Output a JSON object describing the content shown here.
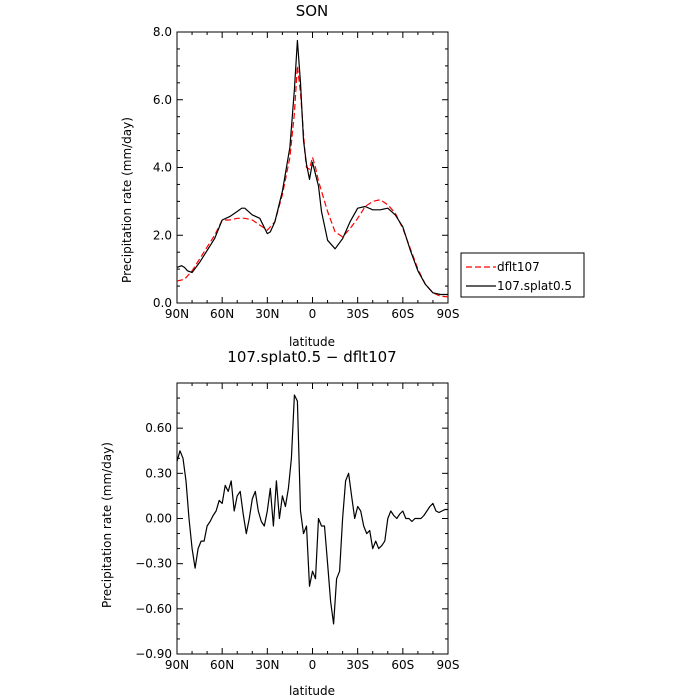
{
  "chart_data": [
    {
      "type": "line",
      "title": "SON",
      "xlabel": "latitude",
      "ylabel": "Precipitation rate (mm/day)",
      "x_ticks": [
        "90N",
        "60N",
        "30N",
        "0",
        "30S",
        "60S",
        "90S"
      ],
      "y_ticks": [
        "0.0",
        "2.0",
        "4.0",
        "6.0",
        "8.0"
      ],
      "ylim": [
        0,
        8
      ],
      "xlim": [
        90,
        -90
      ],
      "grid": false,
      "legend_position": "right",
      "legend": [
        "dflt107",
        "107.splat0.5"
      ],
      "series": [
        {
          "name": "dflt107",
          "color": "#ff0000",
          "dash": "dashed",
          "x": [
            90,
            85,
            80,
            75,
            70,
            65,
            60,
            55,
            50,
            45,
            40,
            35,
            30,
            25,
            20,
            15,
            12,
            10,
            8,
            6,
            5,
            4,
            2,
            0,
            -2,
            -4,
            -6,
            -10,
            -15,
            -20,
            -25,
            -30,
            -35,
            -40,
            -45,
            -50,
            -55,
            -60,
            -65,
            -70,
            -75,
            -80,
            -85,
            -90
          ],
          "values": [
            0.65,
            0.7,
            0.95,
            1.3,
            1.65,
            2.0,
            2.45,
            2.45,
            2.5,
            2.5,
            2.45,
            2.3,
            2.15,
            2.4,
            3.2,
            4.3,
            5.6,
            7.0,
            6.2,
            5.0,
            4.4,
            4.0,
            3.95,
            4.3,
            4.0,
            3.6,
            3.3,
            2.7,
            2.1,
            1.95,
            2.2,
            2.5,
            2.85,
            3.0,
            3.05,
            2.9,
            2.65,
            2.2,
            1.6,
            1.0,
            0.55,
            0.3,
            0.2,
            0.18
          ]
        },
        {
          "name": "107.splat0.5",
          "color": "#000000",
          "dash": "solid",
          "x": [
            90,
            87,
            85,
            83,
            80,
            75,
            70,
            65,
            60,
            55,
            50,
            47,
            45,
            40,
            35,
            30,
            28,
            25,
            20,
            15,
            12,
            10,
            8,
            6,
            4,
            2,
            0,
            -2,
            -4,
            -6,
            -10,
            -15,
            -20,
            -25,
            -30,
            -35,
            -40,
            -45,
            -50,
            -55,
            -60,
            -65,
            -70,
            -75,
            -80,
            -85,
            -90
          ],
          "values": [
            1.05,
            1.1,
            1.05,
            0.95,
            0.9,
            1.2,
            1.55,
            1.9,
            2.45,
            2.55,
            2.7,
            2.8,
            2.8,
            2.6,
            2.5,
            2.05,
            2.1,
            2.4,
            3.3,
            4.6,
            6.3,
            7.75,
            6.5,
            4.8,
            4.1,
            3.65,
            4.15,
            3.8,
            3.45,
            2.7,
            1.85,
            1.6,
            1.9,
            2.4,
            2.8,
            2.85,
            2.75,
            2.75,
            2.8,
            2.6,
            2.25,
            1.55,
            0.95,
            0.55,
            0.3,
            0.25,
            0.25
          ]
        }
      ]
    },
    {
      "type": "line",
      "title": "107.splat0.5 − dflt107",
      "xlabel": "latitude",
      "ylabel": "Precipitation rate (mm/day)",
      "x_ticks": [
        "90N",
        "60N",
        "30N",
        "0",
        "30S",
        "60S",
        "90S"
      ],
      "y_ticks": [
        "0.60",
        "0.30",
        "0.00",
        "−0.30",
        "−0.60",
        "−0.90"
      ],
      "ylim": [
        -0.9,
        0.9
      ],
      "xlim": [
        90,
        -90
      ],
      "grid": false,
      "series": [
        {
          "color": "#000000",
          "dash": "solid",
          "x": [
            90,
            88,
            86,
            84,
            82,
            80,
            78,
            76,
            74,
            72,
            70,
            68,
            66,
            64,
            62,
            60,
            58,
            56,
            54,
            52,
            50,
            48,
            46,
            44,
            42,
            40,
            38,
            36,
            34,
            32,
            30,
            28,
            26,
            24,
            22,
            20,
            18,
            16,
            14,
            12,
            10,
            8,
            6,
            4,
            2,
            0,
            -2,
            -4,
            -6,
            -8,
            -10,
            -12,
            -14,
            -16,
            -18,
            -20,
            -22,
            -24,
            -26,
            -28,
            -30,
            -32,
            -34,
            -36,
            -38,
            -40,
            -42,
            -44,
            -46,
            -48,
            -50,
            -52,
            -54,
            -56,
            -58,
            -60,
            -62,
            -64,
            -66,
            -68,
            -70,
            -72,
            -74,
            -76,
            -78,
            -80,
            -82,
            -84,
            -86,
            -88,
            -90
          ],
          "values": [
            0.38,
            0.45,
            0.4,
            0.25,
            0.0,
            -0.2,
            -0.33,
            -0.2,
            -0.15,
            -0.15,
            -0.05,
            -0.02,
            0.02,
            0.05,
            0.12,
            0.1,
            0.22,
            0.18,
            0.25,
            0.05,
            0.15,
            0.18,
            0.03,
            -0.1,
            0.0,
            0.13,
            0.18,
            0.05,
            -0.02,
            -0.05,
            0.05,
            0.2,
            -0.05,
            0.25,
            0.0,
            0.15,
            0.08,
            0.2,
            0.4,
            0.82,
            0.78,
            0.05,
            -0.1,
            -0.05,
            -0.45,
            -0.35,
            -0.4,
            0.0,
            -0.05,
            -0.05,
            -0.3,
            -0.55,
            -0.7,
            -0.4,
            -0.35,
            0.0,
            0.25,
            0.3,
            0.15,
            0.0,
            0.08,
            0.05,
            -0.05,
            -0.1,
            -0.08,
            -0.2,
            -0.15,
            -0.2,
            -0.18,
            -0.15,
            0.0,
            0.05,
            0.02,
            0.0,
            0.03,
            0.05,
            0.0,
            0.0,
            -0.02,
            0.0,
            0.0,
            0.0,
            0.02,
            0.05,
            0.08,
            0.1,
            0.05,
            0.04,
            0.05,
            0.06,
            0.06
          ]
        }
      ]
    }
  ]
}
